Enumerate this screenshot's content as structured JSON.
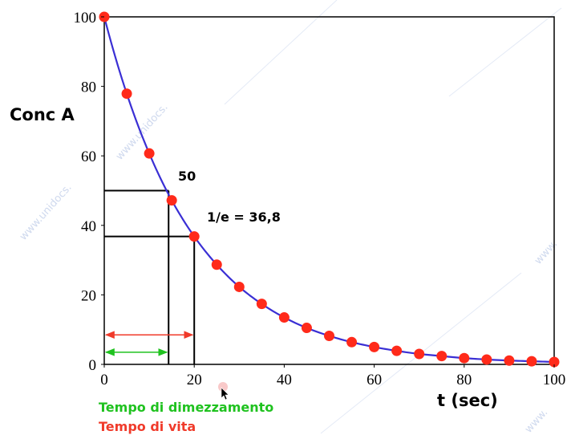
{
  "chart_data": {
    "type": "line",
    "xlabel": "t (sec)",
    "ylabel": "Conc A",
    "xlim": [
      0,
      100
    ],
    "ylim": [
      0,
      100
    ],
    "xticks": [
      0,
      20,
      40,
      60,
      80,
      100
    ],
    "yticks": [
      0,
      20,
      40,
      60,
      80,
      100
    ],
    "grid": false,
    "series": [
      {
        "style": "line",
        "color": "#3a2fd4",
        "x": [
          0,
          5,
          10,
          15,
          20,
          25,
          30,
          35,
          40,
          45,
          50,
          55,
          60,
          65,
          70,
          75,
          80,
          85,
          90,
          95,
          100
        ],
        "y": [
          100,
          77.9,
          60.7,
          47.2,
          36.8,
          28.7,
          22.3,
          17.4,
          13.5,
          10.5,
          8.2,
          6.4,
          5.0,
          3.9,
          3.0,
          2.4,
          1.8,
          1.4,
          1.1,
          0.9,
          0.7
        ]
      },
      {
        "style": "points",
        "color": "#ff2a1a",
        "x": [
          0,
          5,
          10,
          15,
          20,
          25,
          30,
          35,
          40,
          45,
          50,
          55,
          60,
          65,
          70,
          75,
          80,
          85,
          90,
          95,
          100
        ],
        "y": [
          100,
          77.9,
          60.7,
          47.2,
          36.8,
          28.7,
          22.3,
          17.4,
          13.5,
          10.5,
          8.2,
          6.4,
          5.0,
          3.9,
          3.0,
          2.4,
          1.8,
          1.4,
          1.1,
          0.9,
          0.7
        ]
      }
    ],
    "reference_lines": [
      {
        "label": "50",
        "y": 50,
        "x": 14.3
      },
      {
        "label": "1/e = 36,8",
        "y": 36.8,
        "x": 20
      }
    ],
    "arrows": [
      {
        "label": "Tempo di dimezzamento",
        "color": "#1fc21f",
        "x_start": 0,
        "x_end": 14.3,
        "y": 3.5
      },
      {
        "label": "Tempo di vita",
        "color": "#f03a2a",
        "x_start": 0,
        "x_end": 20,
        "y": 8.5
      }
    ]
  },
  "watermarks": [
    "www.unidocs.",
    "www.unidocs.",
    "www.",
    "www."
  ]
}
